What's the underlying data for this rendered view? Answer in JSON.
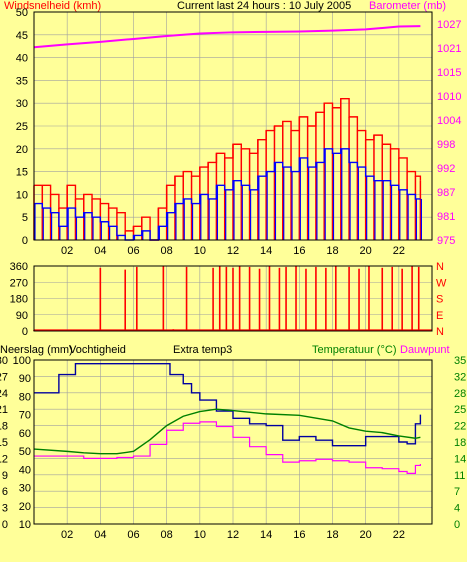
{
  "header": {
    "left_label": "Windsnelheid (kmh)",
    "center_label": "Current last 24 hours : 10 July 2005",
    "right_label": "Barometer (mb)"
  },
  "lower_header": {
    "rain_label": "Neerslag (mm)",
    "humidity_label": "Vochtigheid",
    "extra_label": "Extra temp3",
    "temp_label": "Temperatuur (°C)",
    "dew_label": "Dauwpunt"
  },
  "colors": {
    "background": "#ffff99",
    "wind_gust": "#ff0000",
    "wind_avg": "#0000ff",
    "barometer": "#ff00ff",
    "direction": "#ff0000",
    "humidity": "#0000a0",
    "temperature": "#008000",
    "dewpoint": "#ff00ff",
    "grid": "#a0a0a0",
    "left_axis_text": "#000000",
    "right_axis_text_top": "#ff00ff",
    "right_axis_text_bottom": "#008000"
  },
  "chart_data": [
    {
      "type": "line",
      "title": "Current last 24 hours : 10 July 2005",
      "ylabel": "Windsnelheid (kmh)",
      "y2label": "Barometer (mb)",
      "xlim": [
        0,
        24
      ],
      "ylim": [
        0,
        50
      ],
      "y2lim": [
        975,
        1030
      ],
      "x_ticks": [
        "02",
        "04",
        "06",
        "08",
        "10",
        "12",
        "14",
        "16",
        "18",
        "20",
        "22"
      ],
      "y_ticks": [
        "0",
        "5",
        "10",
        "15",
        "20",
        "25",
        "30",
        "35",
        "40",
        "45",
        "50"
      ],
      "y2_ticks": [
        "975",
        "981",
        "987",
        "992",
        "998",
        "1004",
        "1010",
        "1015",
        "1021",
        "1027"
      ],
      "grid": true,
      "series": [
        {
          "name": "Windsnelheid (kmh)",
          "role": "gust",
          "x": [
            0,
            0.5,
            1,
            1.5,
            2,
            2.5,
            3,
            3.5,
            4,
            4.5,
            5,
            5.5,
            6,
            6.5,
            7,
            7.5,
            8,
            8.5,
            9,
            9.5,
            10,
            10.5,
            11,
            11.5,
            12,
            12.5,
            13,
            13.5,
            14,
            14.5,
            15,
            15.5,
            16,
            16.5,
            17,
            17.5,
            18,
            18.5,
            19,
            19.5,
            20,
            20.5,
            21,
            21.5,
            22,
            22.5,
            23,
            23.3
          ],
          "values": [
            12,
            12,
            10,
            7,
            12,
            9,
            10,
            9,
            8,
            7,
            6,
            2,
            3,
            5,
            0,
            7,
            12,
            14,
            15,
            14,
            16,
            17,
            19,
            18,
            21,
            20,
            19,
            22,
            24,
            25,
            26,
            24,
            27,
            25,
            28,
            30,
            29,
            31,
            27,
            24,
            22,
            23,
            21,
            20,
            18,
            15,
            14,
            13
          ]
        },
        {
          "name": "Windsnelheid (kmh)",
          "role": "average",
          "x": [
            0,
            0.5,
            1,
            1.5,
            2,
            2.5,
            3,
            3.5,
            4,
            4.5,
            5,
            5.5,
            6,
            6.5,
            7,
            7.5,
            8,
            8.5,
            9,
            9.5,
            10,
            10.5,
            11,
            11.5,
            12,
            12.5,
            13,
            13.5,
            14,
            14.5,
            15,
            15.5,
            16,
            16.5,
            17,
            17.5,
            18,
            18.5,
            19,
            19.5,
            20,
            20.5,
            21,
            21.5,
            22,
            22.5,
            23,
            23.3
          ],
          "values": [
            8,
            7,
            6,
            3,
            7,
            5,
            6,
            5,
            4,
            3,
            1,
            0,
            1,
            2,
            0,
            3,
            6,
            8,
            9,
            8,
            10,
            9,
            12,
            11,
            13,
            12,
            11,
            14,
            15,
            17,
            16,
            15,
            18,
            16,
            17,
            20,
            19,
            20,
            17,
            16,
            14,
            13,
            13,
            12,
            11,
            10,
            9,
            9
          ]
        },
        {
          "name": "Barometer (mb)",
          "axis": "right",
          "x": [
            0,
            2,
            4,
            6,
            8,
            10,
            12,
            14,
            16,
            18,
            20,
            22,
            23.3
          ],
          "values": [
            1021.5,
            1022.2,
            1022.8,
            1023.5,
            1024.2,
            1024.8,
            1025.1,
            1025.2,
            1025.3,
            1025.5,
            1025.8,
            1026.5,
            1026.6
          ]
        }
      ]
    },
    {
      "type": "bar",
      "ylim": [
        0,
        360
      ],
      "y_ticks": [
        "0",
        "90",
        "180",
        "270",
        "360"
      ],
      "y2_ticks": [
        "N",
        "E",
        "S",
        "W",
        "N"
      ],
      "grid": true,
      "series": [
        {
          "name": "direction",
          "x": [
            0,
            2,
            4,
            5.5,
            6.2,
            7.8,
            8,
            8.4,
            9.2,
            10.8,
            11.2,
            11.6,
            12.0,
            12.4,
            13.0,
            13.6,
            14.2,
            14.8,
            15.2,
            15.8,
            16.4,
            17.0,
            17.6,
            18.2,
            19.0,
            19.6,
            20.2,
            21.0,
            21.6,
            22.2,
            22.8,
            23.2
          ],
          "values": [
            5,
            5,
            350,
            340,
            355,
            360,
            5,
            10,
            355,
            350,
            360,
            355,
            350,
            360,
            355,
            345,
            360,
            350,
            355,
            360,
            345,
            355,
            350,
            360,
            355,
            345,
            360,
            350,
            355,
            345,
            360,
            355
          ]
        }
      ]
    },
    {
      "type": "line",
      "xlim": [
        0,
        24
      ],
      "x_ticks": [
        "02",
        "04",
        "06",
        "08",
        "10",
        "12",
        "14",
        "16",
        "18",
        "20",
        "22"
      ],
      "y_ticks_rain": [
        "0",
        "3",
        "6",
        "9",
        "12",
        "15",
        "18",
        "21",
        "24",
        "27",
        "30"
      ],
      "y_ticks_humidity": [
        "10",
        "20",
        "30",
        "40",
        "50",
        "60",
        "70",
        "80",
        "90",
        "100"
      ],
      "y_ticks_temp": [
        "0",
        "4",
        "7",
        "11",
        "14",
        "18",
        "22",
        "25",
        "28",
        "32",
        "35"
      ],
      "humidity_ylim": [
        10,
        100
      ],
      "temp_ylim": [
        0,
        35
      ],
      "grid": true,
      "series": [
        {
          "name": "Vochtigheid",
          "x": [
            0,
            1.5,
            2.5,
            4,
            5,
            6,
            7,
            7.8,
            8.2,
            9,
            9.5,
            10,
            11,
            12,
            13,
            14,
            15,
            16,
            17,
            18,
            19,
            20,
            21,
            22,
            22.5,
            23,
            23.3
          ],
          "values": [
            82,
            92,
            98,
            98,
            98,
            98,
            98,
            98,
            92,
            87,
            82,
            78,
            72,
            68,
            65,
            64,
            56,
            58,
            56,
            53,
            53,
            58,
            58,
            55,
            54,
            65,
            70
          ]
        },
        {
          "name": "Temperatuur (°C)",
          "x": [
            0,
            2,
            3,
            4,
            5,
            6,
            7,
            8,
            9,
            10,
            11,
            12,
            14,
            16,
            18,
            19,
            20,
            21,
            22,
            23,
            23.3
          ],
          "values": [
            16,
            15.5,
            15.2,
            15,
            15,
            15.5,
            18,
            21,
            23,
            24,
            24.5,
            24.2,
            23.5,
            23.2,
            22,
            20.5,
            19.8,
            19.5,
            18.8,
            18.3,
            18.5
          ]
        },
        {
          "name": "Dauwpunt",
          "x": [
            0,
            2,
            3,
            4,
            5,
            6,
            7,
            8,
            9,
            10,
            11,
            12,
            13,
            14,
            15,
            16,
            17,
            18,
            19,
            20,
            21,
            22,
            22.5,
            23,
            23.3
          ],
          "values": [
            14.5,
            14.5,
            14,
            14,
            14.2,
            14.5,
            17,
            20,
            21.5,
            21.8,
            20.8,
            18.5,
            16.5,
            14.8,
            13.2,
            13.5,
            13.8,
            13.5,
            13.2,
            12.0,
            11.8,
            11.2,
            10.8,
            12.5,
            12.8
          ]
        }
      ]
    }
  ]
}
